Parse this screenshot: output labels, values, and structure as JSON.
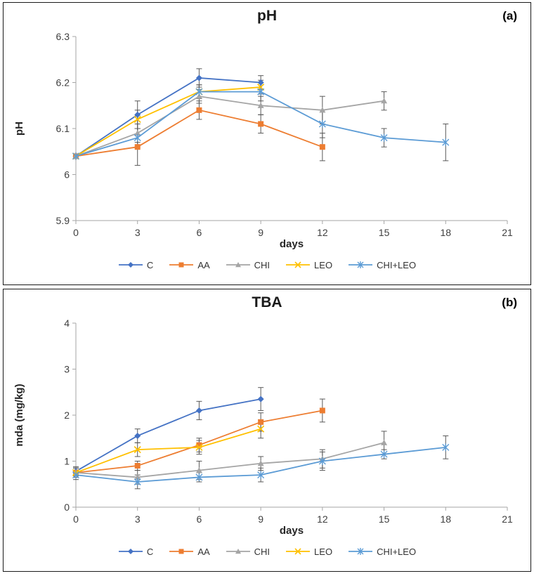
{
  "figure": {
    "legend_names": [
      "C",
      "AA",
      "CHI",
      "LEO",
      "CHI+LEO"
    ]
  },
  "chart_data": [
    {
      "type": "line",
      "title": "pH",
      "annotation": "(a)",
      "xlabel": "days",
      "ylabel": "pH",
      "xlim": [
        0,
        21
      ],
      "ylim": [
        5.9,
        6.3
      ],
      "xticks": [
        0,
        3,
        6,
        9,
        12,
        15,
        18,
        21
      ],
      "yticks": [
        5.9,
        6.0,
        6.1,
        6.2,
        6.3
      ],
      "yticklabels": [
        "5.9",
        "6",
        "6.1",
        "6.2",
        "6.3"
      ],
      "grid": false,
      "error_bars": true,
      "legend_position": "bottom",
      "series": [
        {
          "name": "C",
          "color": "#4472C4",
          "marker": "diamond",
          "x": [
            0,
            3,
            6,
            9
          ],
          "y": [
            6.04,
            6.13,
            6.21,
            6.2
          ],
          "err": [
            0.005,
            0.03,
            0.02,
            0.015
          ]
        },
        {
          "name": "AA",
          "color": "#ED7D31",
          "marker": "square",
          "x": [
            0,
            3,
            6,
            9,
            12
          ],
          "y": [
            6.04,
            6.06,
            6.14,
            6.11,
            6.06
          ],
          "err": [
            0.005,
            0.04,
            0.02,
            0.02,
            0.03
          ]
        },
        {
          "name": "CHI",
          "color": "#A5A5A5",
          "marker": "triangle",
          "x": [
            0,
            3,
            6,
            9,
            12,
            15
          ],
          "y": [
            6.04,
            6.09,
            6.17,
            6.15,
            6.14,
            6.16
          ],
          "err": [
            0.005,
            0.02,
            0.015,
            0.02,
            0.03,
            0.02
          ]
        },
        {
          "name": "LEO",
          "color": "#FFC000",
          "marker": "x",
          "x": [
            0,
            3,
            6,
            9
          ],
          "y": [
            6.04,
            6.12,
            6.18,
            6.19
          ],
          "err": [
            0.005,
            0.02,
            0.015,
            0.015
          ]
        },
        {
          "name": "CHI+LEO",
          "color": "#5B9BD5",
          "marker": "asterisk",
          "x": [
            0,
            3,
            6,
            9,
            12,
            15,
            18
          ],
          "y": [
            6.04,
            6.08,
            6.18,
            6.18,
            6.11,
            6.08,
            6.07
          ],
          "err": [
            0.005,
            0.02,
            0.015,
            0.02,
            0.03,
            0.02,
            0.04
          ]
        }
      ]
    },
    {
      "type": "line",
      "title": "TBA",
      "annotation": "(b)",
      "xlabel": "days",
      "ylabel": "mda (mg/kg)",
      "xlim": [
        0,
        21
      ],
      "ylim": [
        0,
        4
      ],
      "xticks": [
        0,
        3,
        6,
        9,
        12,
        15,
        18,
        21
      ],
      "yticks": [
        0,
        1,
        2,
        3,
        4
      ],
      "yticklabels": [
        "0",
        "1",
        "2",
        "3",
        "4"
      ],
      "grid": false,
      "error_bars": true,
      "legend_position": "bottom",
      "series": [
        {
          "name": "C",
          "color": "#4472C4",
          "marker": "diamond",
          "x": [
            0,
            3,
            6,
            9
          ],
          "y": [
            0.78,
            1.55,
            2.1,
            2.35
          ],
          "err": [
            0.1,
            0.15,
            0.2,
            0.25
          ]
        },
        {
          "name": "AA",
          "color": "#ED7D31",
          "marker": "square",
          "x": [
            0,
            3,
            6,
            9,
            12
          ],
          "y": [
            0.75,
            0.9,
            1.35,
            1.85,
            2.1
          ],
          "err": [
            0.1,
            0.1,
            0.15,
            0.2,
            0.25
          ]
        },
        {
          "name": "CHI",
          "color": "#A5A5A5",
          "marker": "triangle",
          "x": [
            0,
            3,
            6,
            9,
            12,
            15
          ],
          "y": [
            0.75,
            0.65,
            0.8,
            0.95,
            1.05,
            1.4
          ],
          "err": [
            0.1,
            0.15,
            0.2,
            0.15,
            0.2,
            0.25
          ]
        },
        {
          "name": "LEO",
          "color": "#FFC000",
          "marker": "x",
          "x": [
            0,
            3,
            6,
            9
          ],
          "y": [
            0.75,
            1.25,
            1.3,
            1.7
          ],
          "err": [
            0.1,
            0.15,
            0.15,
            0.2
          ]
        },
        {
          "name": "CHI+LEO",
          "color": "#5B9BD5",
          "marker": "asterisk",
          "x": [
            0,
            3,
            6,
            9,
            12,
            15,
            18
          ],
          "y": [
            0.7,
            0.55,
            0.65,
            0.7,
            1.0,
            1.15,
            1.3
          ],
          "err": [
            0.1,
            0.15,
            0.1,
            0.15,
            0.2,
            0.1,
            0.25
          ]
        }
      ]
    }
  ]
}
